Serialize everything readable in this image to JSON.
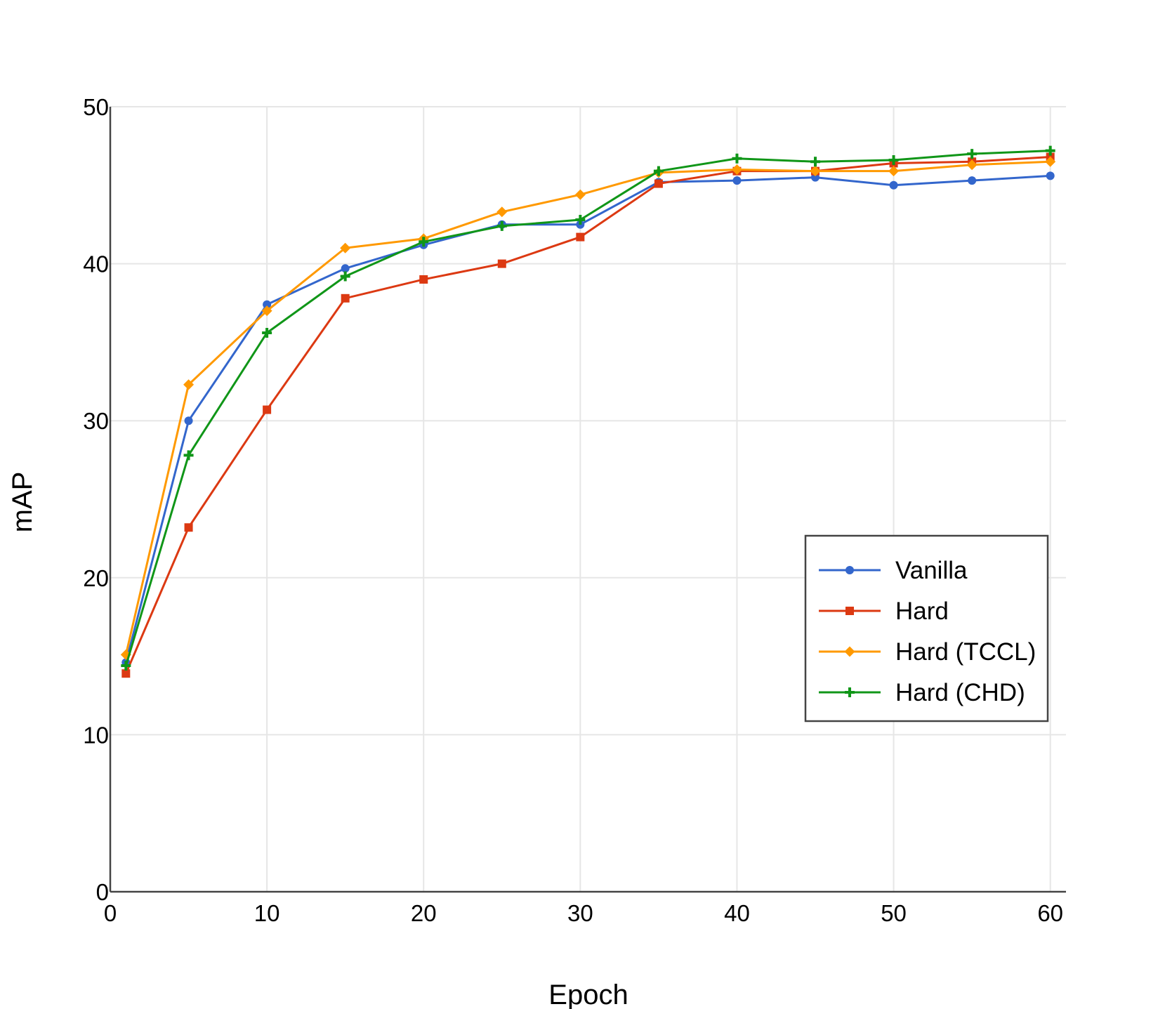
{
  "chart_data": {
    "type": "line",
    "title": "",
    "xlabel": "Epoch",
    "ylabel": "mAP",
    "xlim": [
      0,
      61
    ],
    "ylim": [
      0,
      50
    ],
    "xticks": [
      0,
      10,
      20,
      30,
      40,
      50,
      60
    ],
    "yticks": [
      0,
      10,
      20,
      30,
      40,
      50
    ],
    "grid": true,
    "legend_position": "center-right",
    "x": [
      1,
      5,
      10,
      15,
      20,
      25,
      30,
      35,
      40,
      45,
      50,
      55,
      60
    ],
    "series": [
      {
        "name": "Vanilla",
        "color": "#3366cc",
        "marker": "circle",
        "values": [
          14.6,
          30.0,
          37.4,
          39.7,
          41.2,
          42.5,
          42.5,
          45.2,
          45.3,
          45.5,
          45.0,
          45.3,
          45.6
        ]
      },
      {
        "name": "Hard",
        "color": "#dc3912",
        "marker": "square",
        "values": [
          13.9,
          23.2,
          30.7,
          37.8,
          39.0,
          40.0,
          41.7,
          45.1,
          45.9,
          45.9,
          46.4,
          46.5,
          46.8
        ]
      },
      {
        "name": "Hard (TCCL)",
        "color": "#ff9900",
        "marker": "diamond",
        "values": [
          15.1,
          32.3,
          37.0,
          41.0,
          41.6,
          43.3,
          44.4,
          45.8,
          46.0,
          45.9,
          45.9,
          46.3,
          46.5
        ]
      },
      {
        "name": "Hard (CHD)",
        "color": "#109618",
        "marker": "plus",
        "values": [
          14.4,
          27.8,
          35.6,
          39.2,
          41.4,
          42.4,
          42.8,
          45.9,
          46.7,
          46.5,
          46.6,
          47.0,
          47.2
        ]
      }
    ]
  }
}
